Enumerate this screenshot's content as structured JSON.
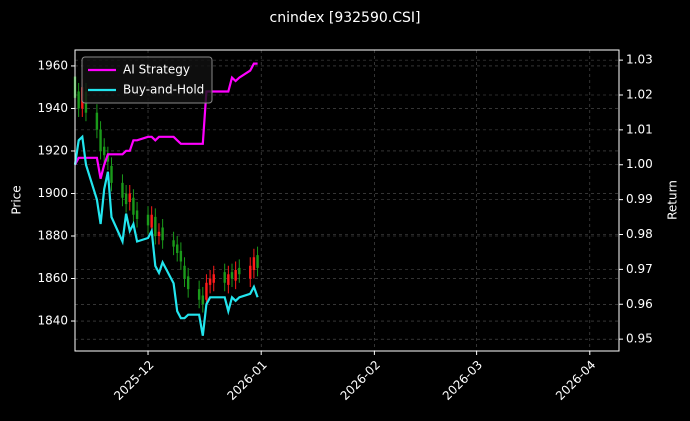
{
  "chart_data": {
    "type": "candlestick",
    "title": "cnindex [932590.CSI]",
    "ylabel": "Price",
    "y2label": "Return",
    "x": [
      "2025-11-11",
      "2025-11-12",
      "2025-11-13",
      "2025-11-14",
      "2025-11-17",
      "2025-11-18",
      "2025-11-19",
      "2025-11-20",
      "2025-11-21",
      "2025-11-24",
      "2025-11-25",
      "2025-11-26",
      "2025-11-27",
      "2025-11-28",
      "2025-12-01",
      "2025-12-02",
      "2025-12-03",
      "2025-12-04",
      "2025-12-05",
      "2025-12-08",
      "2025-12-09",
      "2025-12-10",
      "2025-12-11",
      "2025-12-12",
      "2025-12-15",
      "2025-12-16",
      "2025-12-17",
      "2025-12-18",
      "2025-12-19",
      "2025-12-22",
      "2025-12-23",
      "2025-12-24",
      "2025-12-25",
      "2025-12-26",
      "2025-12-29",
      "2025-12-30",
      "2025-12-31"
    ],
    "open": [
      1955,
      1948,
      1940,
      1948,
      1938,
      1930,
      1922,
      1918,
      1913,
      1905,
      1900,
      1896,
      1898,
      1892,
      1890,
      1884,
      1889,
      1880,
      1884,
      1878,
      1876,
      1873,
      1866,
      1861,
      1855,
      1852,
      1850,
      1857,
      1858,
      1863,
      1857,
      1863,
      1859,
      1865,
      1860,
      1864,
      1871
    ],
    "high": [
      1960,
      1952,
      1954,
      1952,
      1942,
      1934,
      1926,
      1922,
      1917,
      1909,
      1904,
      1904,
      1902,
      1896,
      1894,
      1894,
      1893,
      1886,
      1888,
      1882,
      1880,
      1877,
      1870,
      1865,
      1859,
      1856,
      1862,
      1864,
      1866,
      1867,
      1866,
      1867,
      1868,
      1869,
      1870,
      1874,
      1875
    ],
    "low": [
      1940,
      1936,
      1936,
      1934,
      1926,
      1916,
      1914,
      1911,
      1901,
      1894,
      1891,
      1892,
      1886,
      1884,
      1881,
      1880,
      1876,
      1876,
      1874,
      1871,
      1868,
      1864,
      1856,
      1851,
      1846,
      1844,
      1846,
      1853,
      1854,
      1854,
      1853,
      1856,
      1855,
      1858,
      1856,
      1860,
      1861
    ],
    "close": [
      1945,
      1940,
      1950,
      1938,
      1930,
      1920,
      1918,
      1915,
      1905,
      1898,
      1895,
      1900,
      1890,
      1888,
      1885,
      1890,
      1880,
      1882,
      1878,
      1875,
      1872,
      1868,
      1860,
      1855,
      1850,
      1848,
      1858,
      1860,
      1862,
      1858,
      1862,
      1860,
      1864,
      1862,
      1866,
      1870,
      1865
    ],
    "up_color": "#ff1a1a",
    "down_color": "#1a9a1a",
    "series": [
      {
        "name": "AI Strategy",
        "color": "#ff00ff",
        "axis": "y2",
        "values": [
          1.0,
          1.002,
          1.002,
          1.002,
          1.002,
          0.996,
          1.0,
          1.003,
          1.003,
          1.003,
          1.004,
          1.004,
          1.007,
          1.007,
          1.008,
          1.008,
          1.007,
          1.008,
          1.008,
          1.008,
          1.007,
          1.006,
          1.006,
          1.006,
          1.006,
          1.006,
          1.021,
          1.021,
          1.021,
          1.021,
          1.021,
          1.025,
          1.024,
          1.025,
          1.027,
          1.029,
          1.029
        ]
      },
      {
        "name": "Buy-and-Hold",
        "color": "#22e5ee",
        "axis": "y2",
        "values": [
          1.0,
          1.007,
          1.008,
          1.0,
          0.99,
          0.983,
          0.993,
          0.998,
          0.985,
          0.978,
          0.986,
          0.981,
          0.983,
          0.978,
          0.979,
          0.981,
          0.971,
          0.969,
          0.972,
          0.966,
          0.958,
          0.956,
          0.956,
          0.957,
          0.957,
          0.951,
          0.96,
          0.962,
          0.962,
          0.962,
          0.958,
          0.962,
          0.961,
          0.962,
          0.963,
          0.965,
          0.962
        ]
      }
    ],
    "xlim": [
      "2025-11-11",
      "2026-04-09"
    ],
    "xticks": [
      {
        "value": "2025-12-01",
        "label": "2025-12"
      },
      {
        "value": "2026-01-01",
        "label": "2026-01"
      },
      {
        "value": "2026-02-01",
        "label": "2026-02"
      },
      {
        "value": "2026-03-01",
        "label": "2026-03"
      },
      {
        "value": "2026-04-01",
        "label": "2026-04"
      }
    ],
    "ylim": [
      1825.9,
      1967.5
    ],
    "yticks": [
      1840,
      1860,
      1880,
      1900,
      1920,
      1940,
      1960
    ],
    "y2lim": [
      0.9466,
      1.0329
    ],
    "y2ticks": [
      0.95,
      0.96,
      0.97,
      0.98,
      0.99,
      {
        "value": 1.0,
        "label": "1.00"
      },
      1.01,
      1.02,
      1.03
    ],
    "grid": true,
    "legend": "upper left"
  }
}
